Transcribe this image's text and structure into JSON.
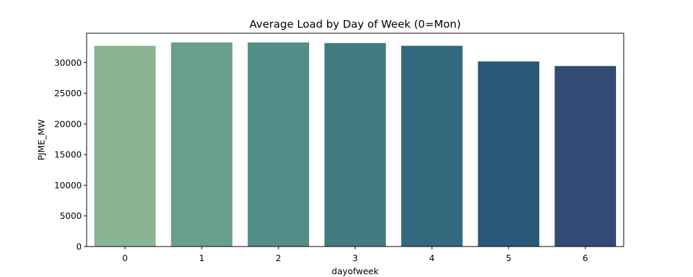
{
  "chart_data": {
    "type": "bar",
    "title": "Average Load by Day of Week (0=Mon)",
    "xlabel": "dayofweek",
    "ylabel": "PJME_MW",
    "categories": [
      "0",
      "1",
      "2",
      "3",
      "4",
      "5",
      "6"
    ],
    "values": [
      32750,
      33300,
      33300,
      33200,
      32750,
      30200,
      29450
    ],
    "ylim": [
      0,
      34800
    ],
    "yticks": [
      0,
      5000,
      10000,
      15000,
      20000,
      25000,
      30000
    ],
    "grid": false,
    "legend": "none",
    "colors": [
      "#89b593",
      "#68a08b",
      "#528e87",
      "#417b80",
      "#32697d",
      "#2b5879",
      "#334a75"
    ]
  }
}
